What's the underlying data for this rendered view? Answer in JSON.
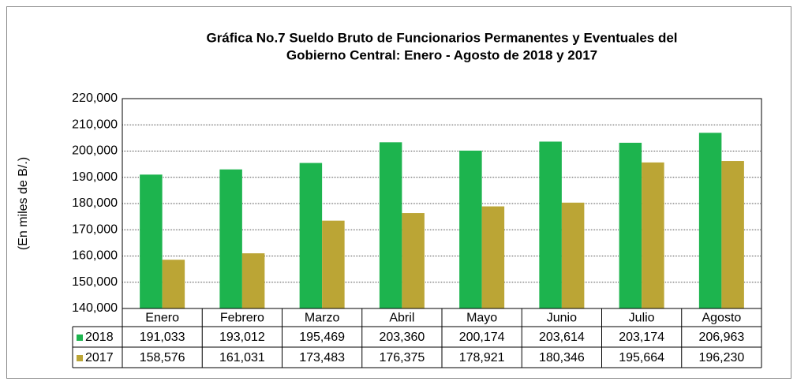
{
  "chart_data": {
    "type": "bar",
    "title": [
      "Gráfica No.7 Sueldo Bruto de Funcionarios Permanentes y Eventuales del",
      "Gobierno Central: Enero - Agosto de 2018 y 2017"
    ],
    "y_label": "(En miles de B/.)",
    "categories": [
      "Enero",
      "Febrero",
      "Marzo",
      "Abril",
      "Mayo",
      "Junio",
      "Julio",
      "Agosto"
    ],
    "series": [
      {
        "name": "2018",
        "color": "#1db44e",
        "values": [
          191033,
          193012,
          195469,
          203360,
          200174,
          203614,
          203174,
          206963
        ],
        "value_labels": [
          "191,033",
          "193,012",
          "195,469",
          "203,360",
          "200,174",
          "203,614",
          "203,174",
          "206,963"
        ]
      },
      {
        "name": "2017",
        "color": "#bba535",
        "values": [
          158576,
          161031,
          173483,
          176375,
          178921,
          180346,
          195664,
          196230
        ],
        "value_labels": [
          "158,576",
          "161,031",
          "173,483",
          "176,375",
          "178,921",
          "180,346",
          "195,664",
          "196,230"
        ]
      }
    ],
    "ylim": [
      140000,
      220000
    ],
    "yticks": [
      {
        "value": 140000,
        "label": "140,000"
      },
      {
        "value": 150000,
        "label": "150,000"
      },
      {
        "value": 160000,
        "label": "160,000"
      },
      {
        "value": 170000,
        "label": "170,000"
      },
      {
        "value": 180000,
        "label": "180,000"
      },
      {
        "value": 190000,
        "label": "190,000"
      },
      {
        "value": 200000,
        "label": "200,000"
      },
      {
        "value": 210000,
        "label": "210,000"
      },
      {
        "value": 220000,
        "label": "220,000"
      }
    ],
    "grid": true
  }
}
